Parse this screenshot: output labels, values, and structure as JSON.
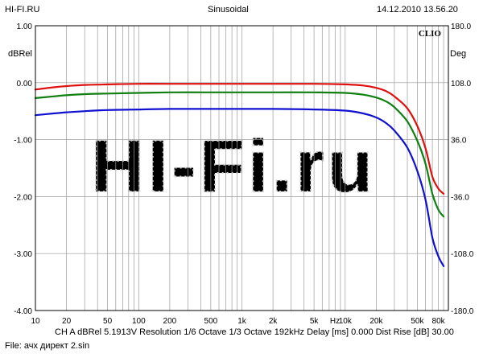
{
  "header": {
    "left": "HI-FI.RU",
    "center": "Sinusoidal",
    "right": "14.12.2010 13.56.20"
  },
  "brand": "CLIO",
  "watermark": "HI-Fi.ru",
  "footer": {
    "settings": "CH A   dBRel 5.1913V  Resolution 1/6 Octave   1/3 Octave   192kHz   Delay [ms] 0.000   Dist Rise [dB] 30.00",
    "file": "File: ачх директ 2.sin"
  },
  "colors": {
    "background": "#ffffff",
    "grid": "#9a9a9a",
    "axis": "#000000",
    "watermark": "#d4d4d4",
    "series": [
      "#e01010",
      "#108010",
      "#1010d0"
    ]
  },
  "chart_data": {
    "type": "line",
    "title": "Sinusoidal",
    "xlabel": "Hz",
    "ylabel": "dBRel",
    "y2label": "Deg",
    "x_scale": "log",
    "xlim": [
      10,
      100000
    ],
    "ylim": [
      -4.0,
      1.0
    ],
    "y2lim": [
      -180.0,
      180.0
    ],
    "grid": true,
    "x_tick_labels": [
      {
        "value": 10,
        "label": "10"
      },
      {
        "value": 20,
        "label": "20"
      },
      {
        "value": 50,
        "label": "50"
      },
      {
        "value": 100,
        "label": "100"
      },
      {
        "value": 200,
        "label": "200"
      },
      {
        "value": 500,
        "label": "500"
      },
      {
        "value": 1000,
        "label": "1k"
      },
      {
        "value": 2000,
        "label": "2k"
      },
      {
        "value": 5000,
        "label": "5k"
      },
      {
        "value": 10000,
        "label": "10k"
      },
      {
        "value": 20000,
        "label": "20k"
      },
      {
        "value": 50000,
        "label": "50k"
      },
      {
        "value": 80000,
        "label": "80k"
      }
    ],
    "y_ticks": [
      "1.00",
      "0.00",
      "-1.00",
      "-2.00",
      "-3.00",
      "-4.00"
    ],
    "y_tick_values": [
      1,
      0,
      -1,
      -2,
      -3,
      -4
    ],
    "y2_ticks": [
      "180.0",
      "108.0",
      "36.0",
      "-36.0",
      "-108.0",
      "-180.0"
    ],
    "series": [
      {
        "color": "#e01010",
        "x": [
          10,
          15,
          20,
          30,
          50,
          100,
          200,
          500,
          1000,
          2000,
          5000,
          10000,
          15000,
          20000,
          25000,
          30000,
          40000,
          50000,
          60000,
          70000,
          80000,
          90000
        ],
        "y": [
          -0.12,
          -0.08,
          -0.06,
          -0.04,
          -0.03,
          -0.02,
          -0.02,
          -0.02,
          -0.02,
          -0.02,
          -0.02,
          -0.03,
          -0.05,
          -0.09,
          -0.15,
          -0.24,
          -0.45,
          -0.76,
          -1.15,
          -1.65,
          -1.86,
          -1.95
        ]
      },
      {
        "color": "#108010",
        "x": [
          10,
          15,
          20,
          30,
          50,
          100,
          200,
          500,
          1000,
          2000,
          5000,
          10000,
          15000,
          20000,
          25000,
          30000,
          40000,
          50000,
          60000,
          70000,
          80000,
          90000
        ],
        "y": [
          -0.27,
          -0.24,
          -0.22,
          -0.2,
          -0.19,
          -0.18,
          -0.17,
          -0.17,
          -0.17,
          -0.17,
          -0.17,
          -0.18,
          -0.21,
          -0.26,
          -0.33,
          -0.43,
          -0.68,
          -1.02,
          -1.42,
          -1.95,
          -2.23,
          -2.35
        ]
      },
      {
        "color": "#1010d0",
        "x": [
          10,
          15,
          20,
          30,
          50,
          100,
          200,
          500,
          1000,
          2000,
          5000,
          10000,
          15000,
          20000,
          25000,
          30000,
          40000,
          50000,
          60000,
          70000,
          80000,
          90000
        ],
        "y": [
          -0.57,
          -0.54,
          -0.52,
          -0.5,
          -0.48,
          -0.47,
          -0.46,
          -0.46,
          -0.46,
          -0.46,
          -0.47,
          -0.49,
          -0.54,
          -0.61,
          -0.71,
          -0.84,
          -1.14,
          -1.55,
          -2.05,
          -2.72,
          -3.05,
          -3.22
        ]
      }
    ]
  }
}
